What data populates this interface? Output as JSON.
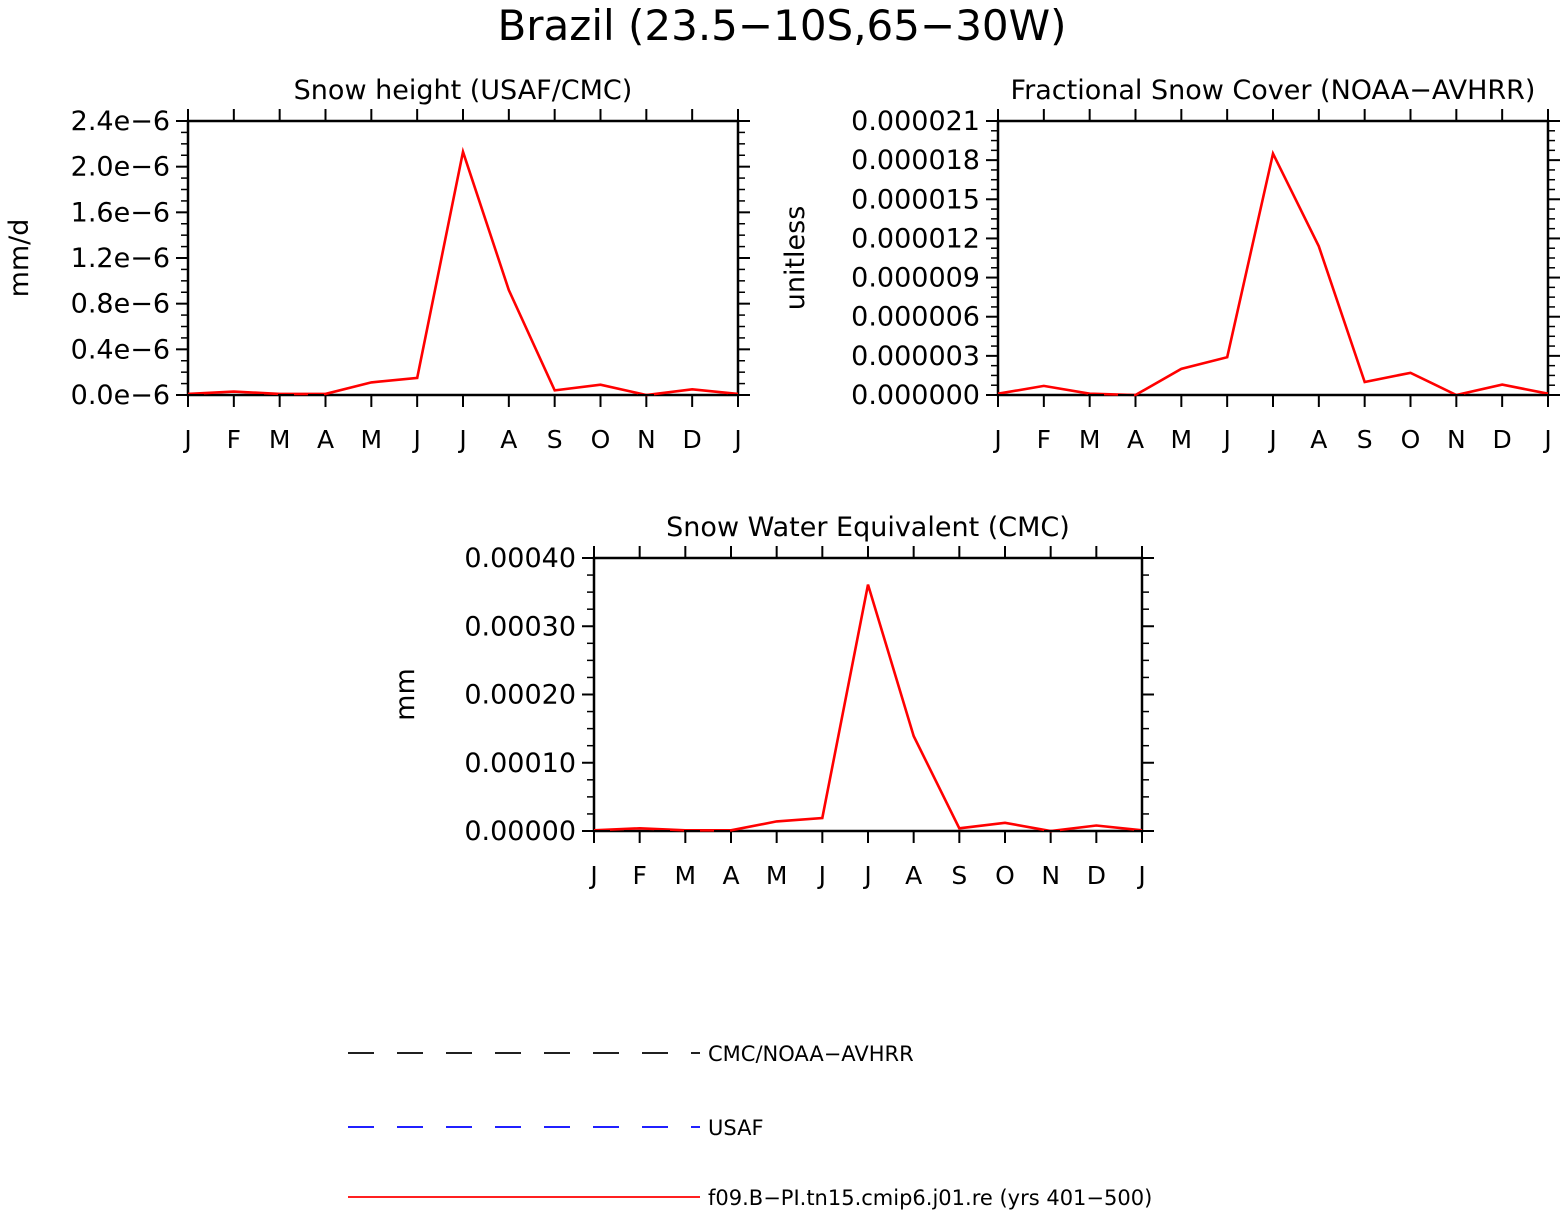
{
  "figure": {
    "title": "Brazil (23.5−10S,65−30W)"
  },
  "colors": {
    "model": "#ff0000",
    "cmc": "#000000",
    "usaf": "#0000ff",
    "axis": "#000000"
  },
  "legend": {
    "items": [
      {
        "label": "CMC/NOAA−AVHRR",
        "color": "#000000",
        "style": "dashed"
      },
      {
        "label": "USAF",
        "color": "#0000ff",
        "style": "dashed"
      },
      {
        "label": "f09.B−PI.tn15.cmip6.j01.re (yrs 401−500)",
        "color": "#ff0000",
        "style": "solid"
      }
    ]
  },
  "chart_data": [
    {
      "type": "line",
      "title": "Snow height (USAF/CMC)",
      "ylabel": "mm/d",
      "xlabel": "",
      "categories": [
        "J",
        "F",
        "M",
        "A",
        "M",
        "J",
        "J",
        "A",
        "S",
        "O",
        "N",
        "D",
        "J"
      ],
      "ylim": [
        0,
        2.4e-06
      ],
      "yticks": [
        0,
        4e-07,
        8e-07,
        1.2e-06,
        1.6e-06,
        2e-06,
        2.4e-06
      ],
      "ytick_labels": [
        "0.0e−6",
        "0.4e−6",
        "0.8e−6",
        "1.2e−6",
        "1.6e−6",
        "2.0e−6",
        "2.4e−6"
      ],
      "grid": false,
      "series": [
        {
          "name": "f09.B−PI.tn15.cmip6.j01.re (yrs 401−500)",
          "color": "#ff0000",
          "values": [
            1e-08,
            3e-08,
            1e-08,
            1e-08,
            1.1e-07,
            1.5e-07,
            2.13e-06,
            9.2e-07,
            4e-08,
            9e-08,
            0.0,
            5e-08,
            1e-08
          ]
        },
        {
          "name": "CMC/NOAA−AVHRR",
          "color": "#000000",
          "values": [
            0,
            0,
            0,
            0,
            0,
            0,
            0,
            0,
            0,
            0,
            0,
            0,
            0
          ]
        }
      ]
    },
    {
      "type": "line",
      "title": "Fractional Snow Cover (NOAA−AVHRR)",
      "ylabel": "unitless",
      "xlabel": "",
      "categories": [
        "J",
        "F",
        "M",
        "A",
        "M",
        "J",
        "J",
        "A",
        "S",
        "O",
        "N",
        "D",
        "J"
      ],
      "ylim": [
        0,
        2.1e-05
      ],
      "yticks": [
        0,
        3e-06,
        6e-06,
        9e-06,
        1.2e-05,
        1.5e-05,
        1.8e-05,
        2.1e-05
      ],
      "ytick_labels": [
        "0.000000",
        "0.000003",
        "0.000006",
        "0.000009",
        "0.000012",
        "0.000015",
        "0.000018",
        "0.000021"
      ],
      "grid": false,
      "series": [
        {
          "name": "f09.B−PI.tn15.cmip6.j01.re (yrs 401−500)",
          "color": "#ff0000",
          "values": [
            1e-07,
            7e-07,
            1e-07,
            0.0,
            2e-06,
            2.9e-06,
            1.85e-05,
            1.14e-05,
            1e-06,
            1.7e-06,
            0.0,
            8e-07,
            1e-07
          ]
        },
        {
          "name": "CMC/NOAA−AVHRR",
          "color": "#000000",
          "values": [
            0,
            0,
            0,
            0,
            0,
            0,
            0,
            0,
            0,
            0,
            0,
            0,
            0
          ]
        }
      ]
    },
    {
      "type": "line",
      "title": "Snow Water Equivalent (CMC)",
      "ylabel": "mm",
      "xlabel": "",
      "categories": [
        "J",
        "F",
        "M",
        "A",
        "M",
        "J",
        "J",
        "A",
        "S",
        "O",
        "N",
        "D",
        "J"
      ],
      "ylim": [
        0,
        0.0004
      ],
      "yticks": [
        0,
        0.0001,
        0.0002,
        0.0003,
        0.0004
      ],
      "ytick_labels": [
        "0.00000",
        "0.00010",
        "0.00020",
        "0.00030",
        "0.00040"
      ],
      "grid": false,
      "series": [
        {
          "name": "f09.B−PI.tn15.cmip6.j01.re (yrs 401−500)",
          "color": "#ff0000",
          "values": [
            1e-06,
            4e-06,
            1e-06,
            1e-06,
            1.4e-05,
            1.9e-05,
            0.000361,
            0.000139,
            4e-06,
            1.2e-05,
            0.0,
            8e-06,
            1e-06
          ]
        },
        {
          "name": "CMC/NOAA−AVHRR",
          "color": "#000000",
          "values": [
            0,
            0,
            0,
            0,
            0,
            0,
            0,
            0,
            0,
            0,
            0,
            0,
            0
          ]
        }
      ]
    }
  ]
}
